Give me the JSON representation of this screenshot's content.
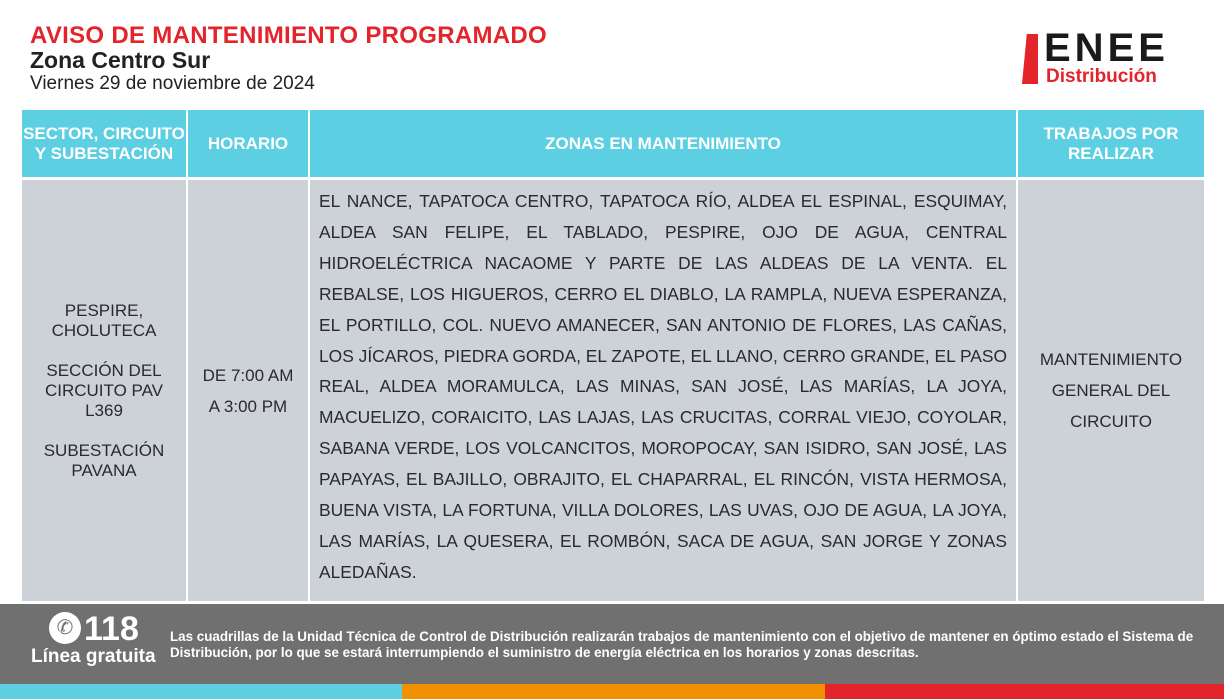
{
  "header": {
    "title": "AVISO DE MANTENIMIENTO PROGRAMADO",
    "zone": "Zona Centro Sur",
    "date": "Viernes 29 de noviembre de 2024"
  },
  "logo": {
    "brand": "ENEE",
    "sub": "Distribución"
  },
  "table": {
    "columns": [
      "SECTOR, CIRCUITO Y SUBESTACIÓN",
      "HORARIO",
      "ZONAS EN MANTENIMIENTO",
      "TRABAJOS POR REALIZAR"
    ],
    "row": {
      "sector": [
        "PESPIRE, CHOLUTECA",
        "SECCIÓN DEL CIRCUITO PAV L369",
        "SUBESTACIÓN PAVANA"
      ],
      "horario": [
        "DE 7:00 AM",
        "A 3:00 PM"
      ],
      "zonas": "EL NANCE, TAPATOCA CENTRO, TAPATOCA RÍO, ALDEA EL ESPINAL, ESQUIMAY, ALDEA SAN FELIPE, EL TABLADO, PESPIRE, OJO DE AGUA, CENTRAL HIDROELÉCTRICA NACAOME Y PARTE DE LAS ALDEAS DE LA VENTA. EL REBALSE, LOS HIGUEROS, CERRO EL DIABLO, LA RAMPLA, NUEVA ESPERANZA, EL PORTILLO, COL. NUEVO AMANECER, SAN ANTONIO DE FLORES, LAS CAÑAS, LOS JÍCAROS, PIEDRA GORDA, EL ZAPOTE, EL LLANO, CERRO GRANDE, EL PASO REAL, ALDEA MORAMULCA, LAS MINAS, SAN JOSÉ, LAS MARÍAS, LA JOYA, MACUELIZO, CORAICITO, LAS LAJAS, LAS CRUCITAS, CORRAL VIEJO, COYOLAR, SABANA VERDE, LOS VOLCANCITOS, MOROPOCAY, SAN ISIDRO, SAN JOSÉ, LAS PAPAYAS, EL BAJILLO, OBRAJITO, EL CHAPARRAL, EL RINCÓN, VISTA HERMOSA, BUENA VISTA, LA FORTUNA, VILLA DOLORES, LAS UVAS, OJO DE AGUA, LA JOYA, LAS MARÍAS, LA QUESERA, EL ROMBÓN, SACA DE AGUA, SAN JORGE Y ZONAS ALEDAÑAS.",
      "trabajos": "MANTENIMIENTO GENERAL DEL CIRCUITO"
    }
  },
  "footer": {
    "phone_icon": "phone-icon",
    "number": "118",
    "line_label": "Línea gratuita",
    "message": "Las cuadrillas de la Unidad Técnica de Control de Distribución realizarán trabajos de mantenimiento con el objetivo de mantener en óptimo estado el Sistema de Distribución, por lo que se estará interrumpiendo el suministro de energía eléctrica en los horarios y zonas descritas."
  },
  "colors": {
    "accent_red": "#e4242b",
    "header_cyan": "#5dcfe2",
    "cell_gray": "#cdd1d8",
    "footer_gray": "#707070",
    "stripe_orange": "#f29100"
  }
}
